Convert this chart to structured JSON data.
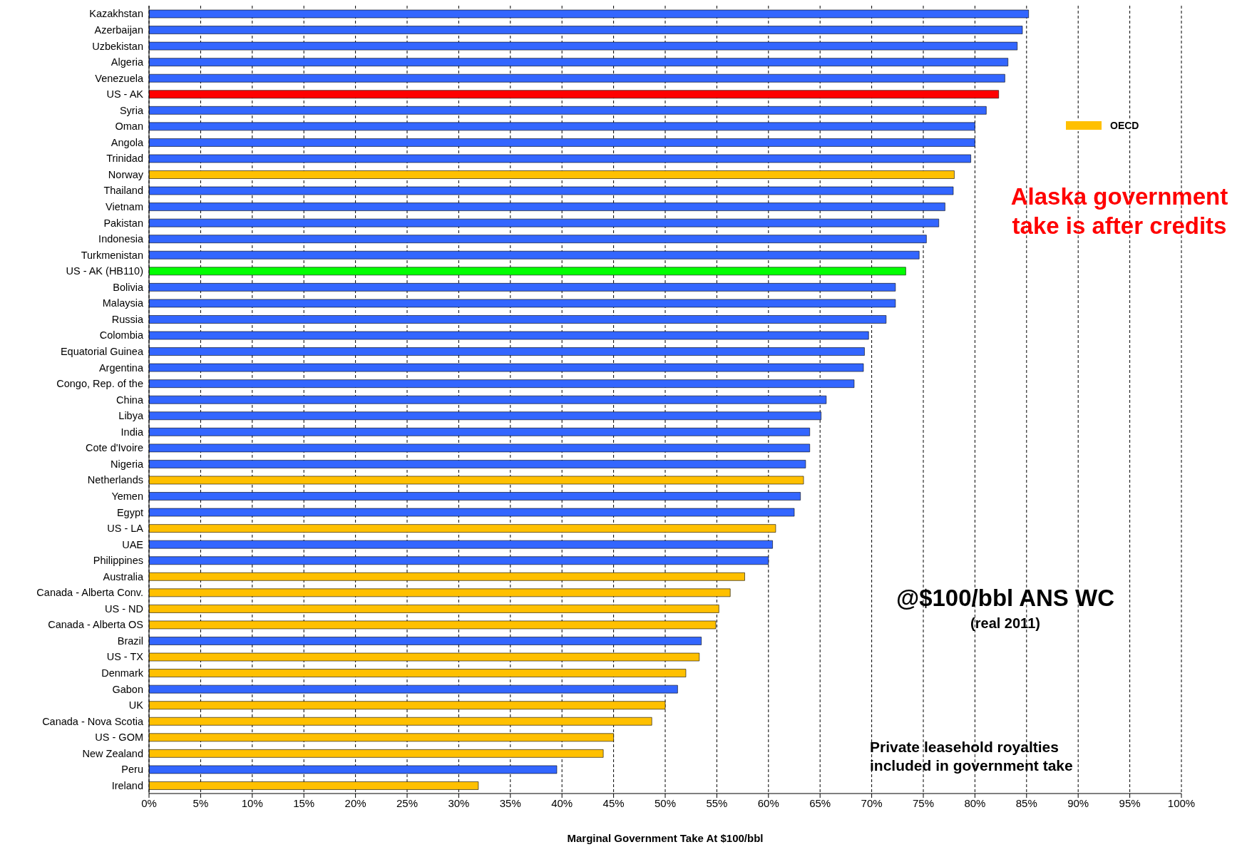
{
  "chart_data": {
    "type": "bar",
    "orientation": "horizontal",
    "stacked": true,
    "xlabel": "Marginal Government Take At $100/bbl",
    "categories": [
      "Kazakhstan",
      "Azerbaijan",
      "Uzbekistan",
      "Algeria",
      "Venezuela",
      "US - AK",
      "Syria",
      "Oman",
      "Angola",
      "Trinidad",
      "Norway",
      "Thailand",
      "Vietnam",
      "Pakistan",
      "Indonesia",
      "Turkmenistan",
      "US - AK (HB110)",
      "Bolivia",
      "Malaysia",
      "Russia",
      "Colombia",
      "Equatorial Guinea",
      "Argentina",
      "Congo, Rep. of the",
      "China",
      "Libya",
      "India",
      "Cote d'Ivoire",
      "Nigeria",
      "Netherlands",
      "Yemen",
      "Egypt",
      "US - LA",
      "UAE",
      "Philippines",
      "Australia",
      "Canada - Alberta Conv.",
      "US - ND",
      "Canada - Alberta OS",
      "Brazil",
      "US - TX",
      "Denmark",
      "Gabon",
      "UK",
      "Canada - Nova Scotia",
      "US - GOM",
      "New Zealand",
      "Peru",
      "Ireland"
    ],
    "series": [
      {
        "color": "#3366ff",
        "values": [
          85.2,
          84.6,
          84.1,
          83.2,
          82.9,
          null,
          81.1,
          80.0,
          80.0,
          79.6,
          null,
          77.9,
          77.1,
          76.5,
          75.3,
          74.6,
          null,
          72.3,
          72.3,
          71.4,
          69.7,
          69.3,
          69.2,
          68.3,
          65.6,
          65.1,
          64.0,
          64.0,
          63.6,
          null,
          63.1,
          62.5,
          null,
          60.4,
          60.0,
          null,
          null,
          null,
          null,
          53.5,
          null,
          null,
          51.2,
          null,
          null,
          null,
          null,
          39.5,
          null
        ]
      },
      {
        "name": "OECD",
        "color": "#ffc000",
        "values": [
          null,
          null,
          null,
          null,
          null,
          null,
          null,
          null,
          null,
          null,
          78.0,
          null,
          null,
          null,
          null,
          null,
          null,
          null,
          null,
          null,
          null,
          null,
          null,
          null,
          null,
          null,
          null,
          null,
          null,
          63.4,
          null,
          null,
          60.7,
          null,
          null,
          57.7,
          56.3,
          55.2,
          54.9,
          null,
          53.3,
          52.0,
          null,
          50.0,
          48.7,
          45.0,
          44.0,
          null,
          31.9
        ]
      },
      {
        "color": "#ff0000",
        "values": [
          null,
          null,
          null,
          null,
          null,
          82.3,
          null,
          null,
          null,
          null,
          null,
          null,
          null,
          null,
          null,
          null,
          null,
          null,
          null,
          null,
          null,
          null,
          null,
          null,
          null,
          null,
          null,
          null,
          null,
          null,
          null,
          null,
          null,
          null,
          null,
          null,
          null,
          null,
          null,
          null,
          null,
          null,
          null,
          null,
          null,
          null,
          null,
          null,
          null
        ]
      },
      {
        "color": "#00ff00",
        "values": [
          null,
          null,
          null,
          null,
          null,
          null,
          null,
          null,
          null,
          null,
          null,
          null,
          null,
          null,
          null,
          null,
          73.3,
          null,
          null,
          null,
          null,
          null,
          null,
          null,
          null,
          null,
          null,
          null,
          null,
          null,
          null,
          null,
          null,
          null,
          null,
          null,
          null,
          null,
          null,
          null,
          null,
          null,
          null,
          null,
          null,
          null,
          null,
          null,
          null
        ]
      }
    ],
    "xlim": [
      0,
      100
    ],
    "xticks": [
      {
        "value": 0,
        "label": "0%"
      },
      {
        "value": 5,
        "label": "5%"
      },
      {
        "value": 10,
        "label": "10%"
      },
      {
        "value": 15,
        "label": "15%"
      },
      {
        "value": 20,
        "label": "20%"
      },
      {
        "value": 25,
        "label": "25%"
      },
      {
        "value": 30,
        "label": "30%"
      },
      {
        "value": 35,
        "label": "35%"
      },
      {
        "value": 40,
        "label": "40%"
      },
      {
        "value": 45,
        "label": "45%"
      },
      {
        "value": 50,
        "label": "50%"
      },
      {
        "value": 55,
        "label": "55%"
      },
      {
        "value": 60,
        "label": "60%"
      },
      {
        "value": 65,
        "label": "65%"
      },
      {
        "value": 70,
        "label": "70%"
      },
      {
        "value": 75,
        "label": "75%"
      },
      {
        "value": 80,
        "label": "80%"
      },
      {
        "value": 85,
        "label": "85%"
      },
      {
        "value": 90,
        "label": "90%"
      },
      {
        "value": 95,
        "label": "95%"
      },
      {
        "value": 100,
        "label": "100%"
      }
    ],
    "grid": "x",
    "legend": "top right",
    "annotations": [
      "Alaska government take is after credits",
      "@$100/bbl ANS WC",
      "(real 2011)",
      "Private leasehold royalties included in government take"
    ]
  }
}
